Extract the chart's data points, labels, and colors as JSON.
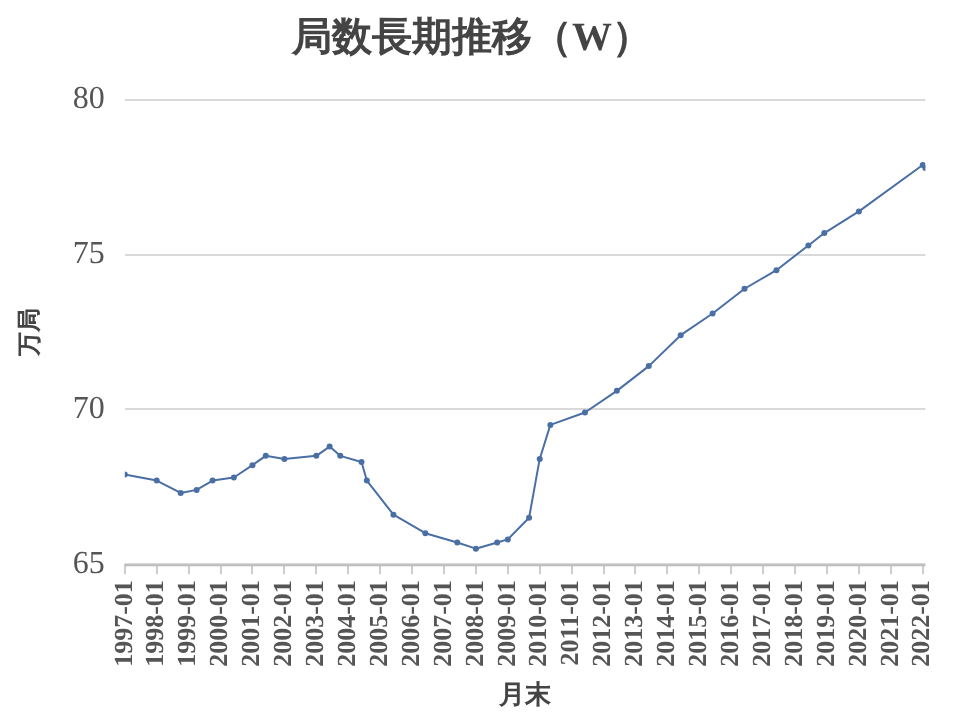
{
  "chart_data": {
    "type": "line",
    "title": "局数長期推移（W）",
    "xlabel": "月末",
    "ylabel": "万局",
    "x": [
      "1997-01",
      "1998-01",
      "1998-10",
      "1999-04",
      "1999-10",
      "2000-06",
      "2001-01",
      "2001-06",
      "2002-01",
      "2003-01",
      "2003-06",
      "2003-10",
      "2004-06",
      "2004-08",
      "2005-06",
      "2006-06",
      "2007-06",
      "2008-01",
      "2008-09",
      "2009-01",
      "2009-09",
      "2010-01",
      "2010-05",
      "2011-06",
      "2012-06",
      "2013-06",
      "2014-06",
      "2015-06",
      "2016-06",
      "2017-06",
      "2018-06",
      "2018-12",
      "2020-01",
      "2022-01",
      "2022-02"
    ],
    "series": [
      {
        "color": "#4a6fa5",
        "values": [
          67.9,
          67.7,
          67.3,
          67.4,
          67.7,
          67.8,
          68.2,
          68.5,
          68.4,
          68.5,
          68.8,
          68.5,
          68.3,
          67.7,
          66.6,
          66.0,
          65.7,
          65.5,
          65.7,
          65.8,
          66.5,
          68.4,
          69.5,
          69.9,
          70.6,
          71.4,
          72.4,
          73.1,
          73.9,
          74.5,
          75.3,
          75.7,
          76.4,
          77.9,
          77.8
        ]
      }
    ],
    "xlim": [
      "1997-01",
      "2022-02"
    ],
    "xticks": [
      "1997-01",
      "1998-01",
      "1999-01",
      "2000-01",
      "2001-01",
      "2002-01",
      "2003-01",
      "2004-01",
      "2005-01",
      "2006-01",
      "2007-01",
      "2008-01",
      "2009-01",
      "2010-01",
      "2011-01",
      "2012-01",
      "2013-01",
      "2014-01",
      "2015-01",
      "2016-01",
      "2017-01",
      "2018-01",
      "2019-01",
      "2020-01",
      "2021-01",
      "2022-01"
    ],
    "ylim": [
      65,
      80
    ],
    "yticks": [
      65,
      70,
      75,
      80
    ],
    "grid": "y",
    "legend": false,
    "marker": "circle",
    "line_style": "solid"
  }
}
